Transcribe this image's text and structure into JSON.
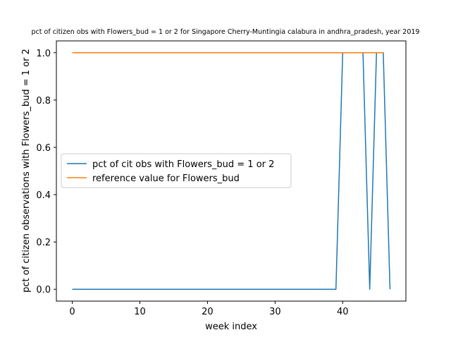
{
  "chart_data": {
    "type": "line",
    "title": "pct of citizen obs with Flowers_bud = 1 or 2 for Singapore Cherry-Muntingia calabura in andhra_pradesh, year 2019",
    "xlabel": "week index",
    "ylabel": "pct of citizen observations with Flowers_bud = 1 or 2",
    "xlim": [
      -2.35,
      49.35
    ],
    "ylim": [
      -0.05,
      1.05
    ],
    "xticks": [
      0,
      10,
      20,
      30,
      40
    ],
    "xtick_labels": [
      "0",
      "10",
      "20",
      "30",
      "40"
    ],
    "yticks": [
      0.0,
      0.2,
      0.4,
      0.6,
      0.8,
      1.0
    ],
    "ytick_labels": [
      "0.0",
      "0.2",
      "0.4",
      "0.6",
      "0.8",
      "1.0"
    ],
    "grid": false,
    "legend_position": "center-left",
    "series": [
      {
        "name": "pct of cit obs with Flowers_bud = 1 or 2",
        "color": "#1f77b4",
        "x": [
          0,
          1,
          2,
          3,
          4,
          5,
          6,
          7,
          8,
          9,
          10,
          11,
          12,
          13,
          14,
          15,
          16,
          17,
          18,
          19,
          20,
          21,
          22,
          23,
          24,
          25,
          26,
          27,
          28,
          29,
          30,
          31,
          32,
          33,
          34,
          35,
          36,
          37,
          38,
          39,
          40,
          41,
          42,
          43,
          44,
          45,
          46,
          47
        ],
        "y": [
          0,
          0,
          0,
          0,
          0,
          0,
          0,
          0,
          0,
          0,
          0,
          0,
          0,
          0,
          0,
          0,
          0,
          0,
          0,
          0,
          0,
          0,
          0,
          0,
          0,
          0,
          0,
          0,
          0,
          0,
          0,
          0,
          0,
          0,
          0,
          0,
          0,
          0,
          0,
          0,
          1,
          1,
          1,
          1,
          0,
          1,
          1,
          0
        ]
      },
      {
        "name": "reference value for Flowers_bud",
        "color": "#ff7f0e",
        "x": [
          0,
          1,
          2,
          3,
          4,
          5,
          6,
          7,
          8,
          9,
          10,
          11,
          12,
          13,
          14,
          15,
          16,
          17,
          18,
          19,
          20,
          21,
          22,
          23,
          24,
          25,
          26,
          27,
          28,
          29,
          30,
          31,
          32,
          33,
          34,
          35,
          36,
          37,
          38,
          39,
          40,
          41,
          42,
          43,
          44,
          45,
          46
        ],
        "y": [
          1,
          1,
          1,
          1,
          1,
          1,
          1,
          1,
          1,
          1,
          1,
          1,
          1,
          1,
          1,
          1,
          1,
          1,
          1,
          1,
          1,
          1,
          1,
          1,
          1,
          1,
          1,
          1,
          1,
          1,
          1,
          1,
          1,
          1,
          1,
          1,
          1,
          1,
          1,
          1,
          1,
          1,
          1,
          1,
          1,
          1,
          1
        ]
      }
    ]
  }
}
